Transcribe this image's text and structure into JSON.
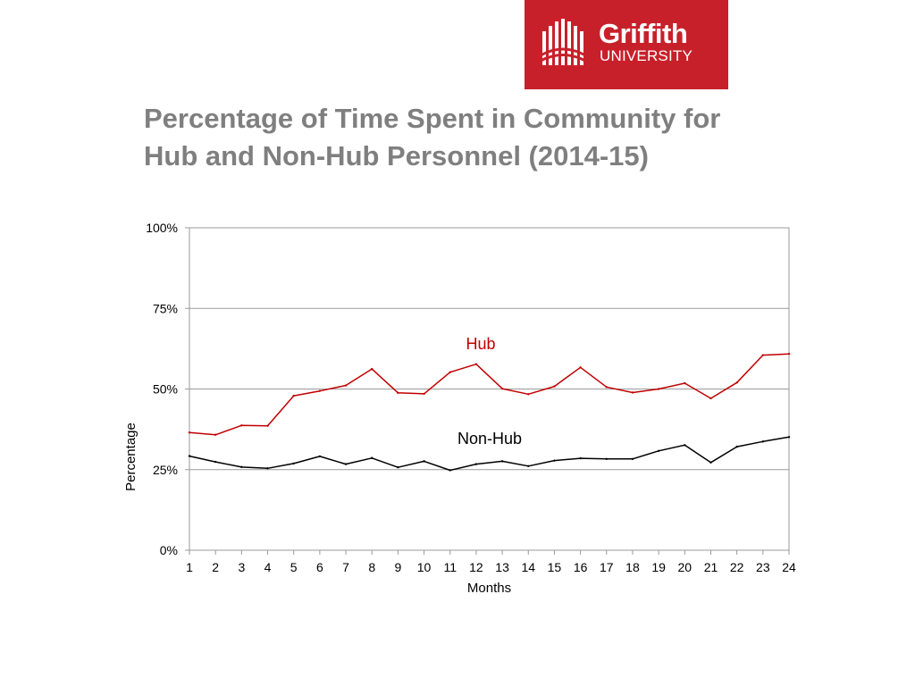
{
  "logo": {
    "name": "Griffith",
    "sub": "UNIVERSITY",
    "background_color": "#c8202a",
    "icon": "griffith-crest-icon"
  },
  "slide": {
    "title_line1": "Percentage of Time Spent in Community for",
    "title_line2": "Hub and Non-Hub Personnel (2014-15)",
    "title_color": "#7f7f7f"
  },
  "chart_data": {
    "type": "line",
    "xlabel": "Months",
    "ylabel": "Percentage",
    "ylim": [
      0,
      100
    ],
    "yticks": [
      "0%",
      "25%",
      "50%",
      "75%",
      "100%"
    ],
    "ytick_values": [
      0,
      25,
      50,
      75,
      100
    ],
    "x": [
      1,
      2,
      3,
      4,
      5,
      6,
      7,
      8,
      9,
      10,
      11,
      12,
      13,
      14,
      15,
      16,
      17,
      18,
      19,
      20,
      21,
      22,
      23,
      24
    ],
    "grid": "horizontal",
    "series": [
      {
        "name": "Hub",
        "color": "#c00000",
        "values": [
          36.5,
          35.8,
          38.7,
          38.6,
          47.9,
          49.4,
          51.1,
          56.2,
          48.8,
          48.5,
          55.2,
          57.7,
          50.1,
          48.4,
          50.8,
          56.7,
          50.6,
          48.9,
          50.0,
          51.8,
          47.1,
          52.0,
          60.5,
          60.9
        ]
      },
      {
        "name": "Non-Hub",
        "color": "#000000",
        "values": [
          29.2,
          27.4,
          25.8,
          25.4,
          26.9,
          29.1,
          26.7,
          28.6,
          25.7,
          27.6,
          24.8,
          26.7,
          27.6,
          26.1,
          27.8,
          28.5,
          28.3,
          28.3,
          30.8,
          32.6,
          27.2,
          32.1,
          33.7,
          35.1
        ]
      }
    ]
  }
}
